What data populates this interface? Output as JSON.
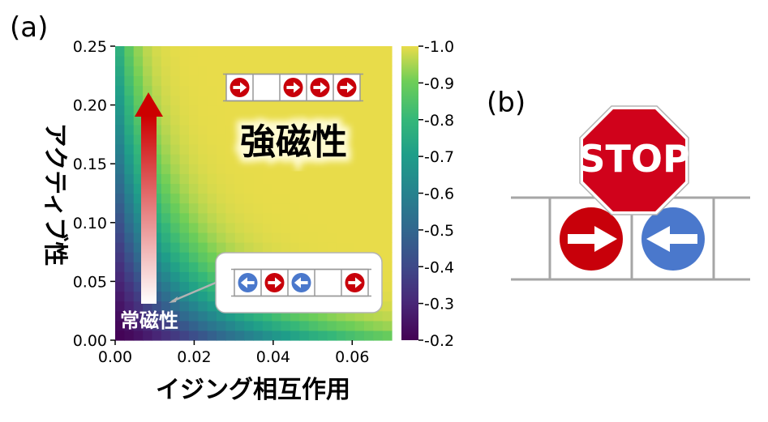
{
  "panel_a_label": "(a)",
  "panel_b_label": "(b)",
  "chart_data": {
    "type": "heatmap",
    "xlabel": "イジング相互作用",
    "ylabel": "アクティブ性",
    "x_range": [
      0.0,
      0.07
    ],
    "y_range": [
      0.0,
      0.25
    ],
    "x_ticks": [
      "0.00",
      "0.02",
      "0.04",
      "0.06"
    ],
    "y_ticks": [
      "0.00",
      "0.05",
      "0.10",
      "0.15",
      "0.20",
      "0.25"
    ],
    "colorbar": {
      "colormap": "viridis",
      "range": [
        0.2,
        1.0
      ],
      "ticks": [
        "0.2",
        "0.3",
        "0.4",
        "0.5",
        "0.6",
        "0.7",
        "0.8",
        "0.9",
        "1.0"
      ],
      "tick_prefix": "-"
    },
    "regions": {
      "ferro_label": "強磁性",
      "para_label": "常磁性"
    },
    "grid": false
  },
  "insets": {
    "ferro_spins": [
      "right",
      "empty",
      "right",
      "right",
      "right"
    ],
    "para_spins": [
      "left",
      "right",
      "left",
      "empty",
      "right"
    ]
  },
  "stop_sign": {
    "text": "STOP",
    "color": "#d0021b"
  },
  "colors": {
    "right_disc": "#c8000a",
    "left_disc": "#4a78cc",
    "arrow_top": "#cc0000",
    "arrow_bottom": "#ffffff",
    "lane_lines": "#a6a6a6"
  }
}
